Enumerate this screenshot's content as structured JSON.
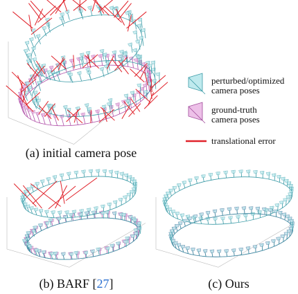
{
  "figure": {
    "panels": [
      {
        "caption": "(a) initial camera pose"
      },
      {
        "caption": "(b) BARF [",
        "citation": "27",
        "caption_end": "]"
      },
      {
        "caption": "(c) Ours"
      }
    ],
    "legend": [
      {
        "lines": [
          "perturbed/optimized",
          "camera poses"
        ]
      },
      {
        "lines": [
          "ground-truth",
          "camera poses"
        ]
      },
      {
        "lines": [
          "translational error"
        ]
      }
    ]
  }
}
